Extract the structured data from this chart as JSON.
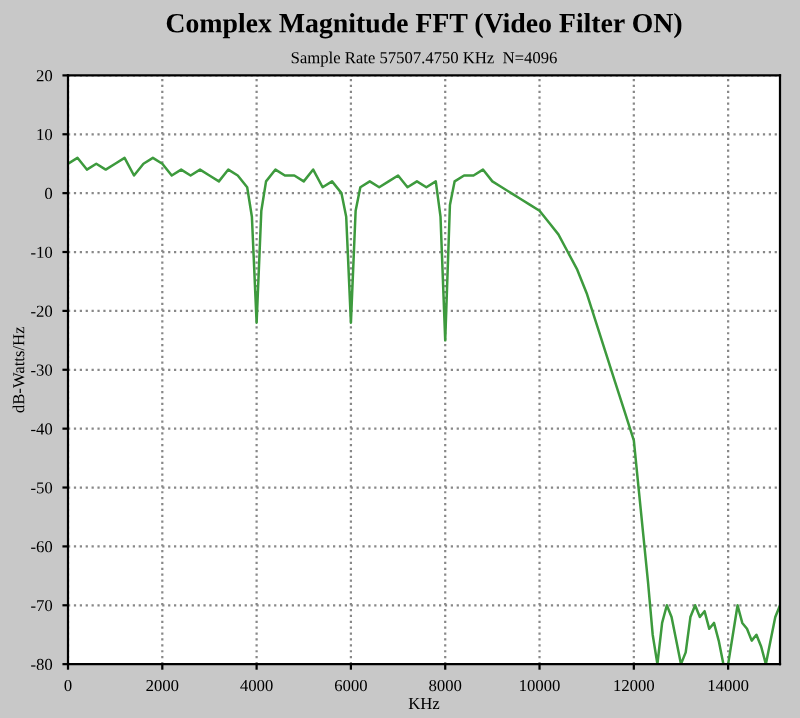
{
  "chart_data": {
    "type": "line",
    "title": "Complex Magnitude FFT (Video Filter ON)",
    "subtitle": "Sample Rate 57507.4750 KHz  N=4096",
    "xlabel": "KHz",
    "ylabel": "dB-Watts/Hz",
    "xlim": [
      0,
      15100
    ],
    "ylim": [
      -80,
      20
    ],
    "xticks": [
      0,
      2000,
      4000,
      6000,
      8000,
      10000,
      12000,
      14000
    ],
    "yticks": [
      -80,
      -70,
      -60,
      -50,
      -40,
      -30,
      -20,
      -10,
      0,
      10,
      20
    ],
    "grid": true,
    "line_style": "solid",
    "marker": "none",
    "series": [
      {
        "color": "#3d9a3d",
        "x": [
          0,
          200,
          400,
          600,
          800,
          1000,
          1200,
          1400,
          1600,
          1800,
          2000,
          2200,
          2400,
          2600,
          2800,
          3000,
          3200,
          3400,
          3600,
          3800,
          3900,
          4000,
          4100,
          4200,
          4400,
          4600,
          4800,
          5000,
          5200,
          5400,
          5600,
          5800,
          5900,
          6000,
          6100,
          6200,
          6400,
          6600,
          6800,
          7000,
          7200,
          7400,
          7600,
          7800,
          7900,
          8000,
          8100,
          8200,
          8400,
          8600,
          8800,
          9000,
          9200,
          9400,
          9600,
          9800,
          10000,
          10200,
          10400,
          10600,
          10800,
          11000,
          11200,
          11400,
          11600,
          11800,
          12000,
          12100,
          12200,
          12300,
          12400,
          12500,
          12600,
          12700,
          12800,
          12900,
          13000,
          13100,
          13200,
          13300,
          13400,
          13500,
          13600,
          13700,
          13800,
          13900,
          14000,
          14100,
          14200,
          14300,
          14400,
          14500,
          14600,
          14700,
          14800,
          14900,
          15000,
          15100
        ],
        "values": [
          5,
          6,
          4,
          5,
          4,
          5,
          6,
          3,
          5,
          6,
          5,
          3,
          4,
          3,
          4,
          3,
          2,
          4,
          3,
          1,
          -4,
          -22,
          -3,
          2,
          4,
          3,
          3,
          2,
          4,
          1,
          2,
          0,
          -4,
          -22,
          -3,
          1,
          2,
          1,
          2,
          3,
          1,
          2,
          1,
          2,
          -4,
          -25,
          -2,
          2,
          3,
          3,
          4,
          2,
          1,
          0,
          -1,
          -2,
          -3,
          -5,
          -7,
          -10,
          -13,
          -17,
          -22,
          -27,
          -32,
          -37,
          -42,
          -50,
          -58,
          -66,
          -75,
          -80,
          -73,
          -70,
          -72,
          -76,
          -80,
          -78,
          -72,
          -70,
          -72,
          -71,
          -74,
          -73,
          -76,
          -80,
          -80,
          -75,
          -70,
          -73,
          -74,
          -76,
          -75,
          -77,
          -80,
          -76,
          -72,
          -70
        ]
      }
    ]
  }
}
